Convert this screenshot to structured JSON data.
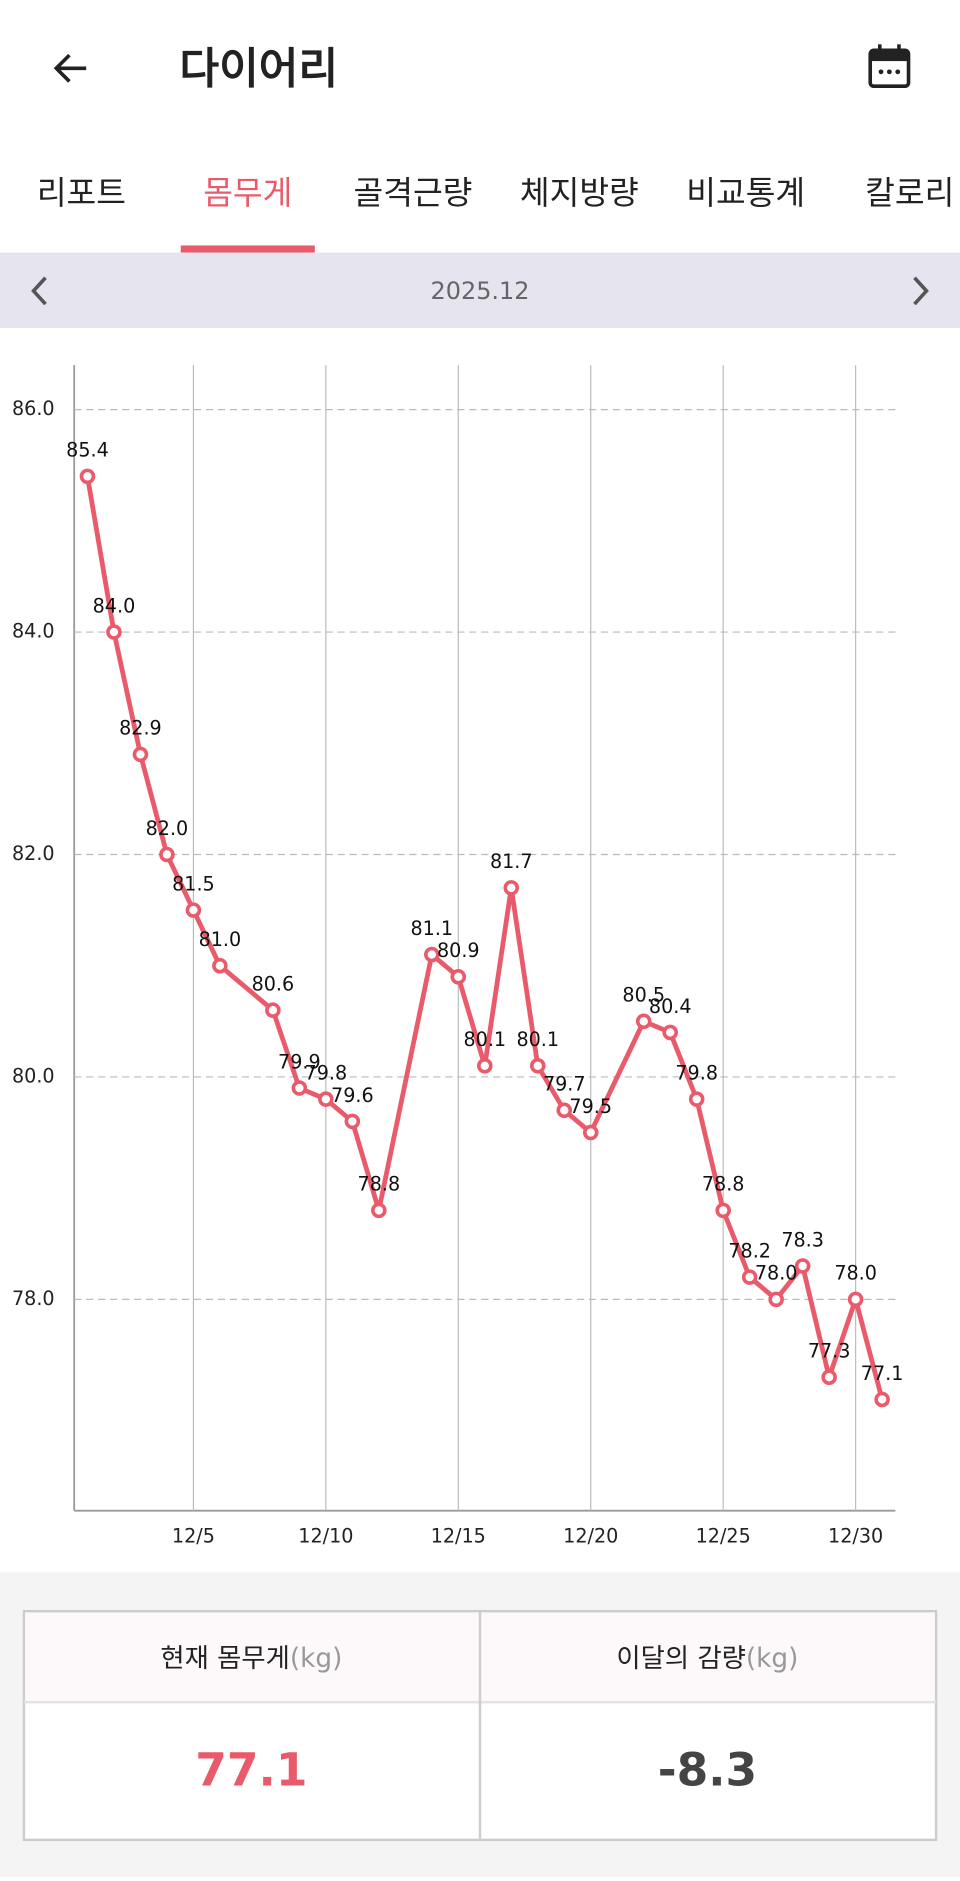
{
  "header": {
    "title": "다이어리"
  },
  "tabs": [
    "리포트",
    "몸무게",
    "골격근량",
    "체지방량",
    "비교통계",
    "칼로리"
  ],
  "month": "2025.12",
  "chart_data": {
    "type": "line",
    "x": [
      1,
      2,
      3,
      4,
      5,
      6,
      8,
      9,
      10,
      11,
      12,
      14,
      15,
      16,
      17,
      18,
      19,
      20,
      22,
      23,
      24,
      25,
      26,
      27,
      28,
      29,
      30,
      31
    ],
    "series": [
      {
        "name": "몸무게",
        "color": "#e95b6b",
        "values": [
          85.4,
          84.0,
          82.9,
          82.0,
          81.5,
          81.0,
          80.6,
          79.9,
          79.8,
          79.6,
          78.8,
          81.1,
          80.9,
          80.1,
          81.7,
          80.1,
          79.7,
          79.5,
          80.5,
          80.4,
          79.8,
          78.8,
          78.2,
          78.0,
          78.3,
          77.3,
          78.0,
          77.1
        ],
        "value_labels": [
          "85.4",
          "84.0",
          "82.9",
          "82.0",
          "81.5",
          "81.0",
          "80.6",
          "79.9",
          "79.8",
          "79.6",
          "78.8",
          "81.1",
          "80.9",
          "80.1",
          "81.7",
          "80.1",
          "79.7",
          "79.5",
          "80.5",
          "80.4",
          "79.8",
          "78.8",
          "78.2",
          "78.0",
          "78.3",
          "77.3",
          "78.0",
          "77.1"
        ]
      }
    ],
    "xlim": [
      0.5,
      31.5
    ],
    "xticks": [
      {
        "value": 5,
        "label": "12/5"
      },
      {
        "value": 10,
        "label": "12/10"
      },
      {
        "value": 15,
        "label": "12/15"
      },
      {
        "value": 20,
        "label": "12/20"
      },
      {
        "value": 25,
        "label": "12/25"
      },
      {
        "value": 30,
        "label": "12/30"
      }
    ],
    "ylim": [
      76.1,
      86.4
    ],
    "yticks": [
      {
        "value": 78,
        "label": "78.0"
      },
      {
        "value": 80,
        "label": "80.0"
      },
      {
        "value": 82,
        "label": "82.0"
      },
      {
        "value": 84,
        "label": "84.0"
      },
      {
        "value": 86,
        "label": "86.0"
      }
    ],
    "grid": true
  },
  "summary": {
    "headers": [
      {
        "text": "현재 몸무게",
        "unit": "(kg)"
      },
      {
        "text": "이달의 감량",
        "unit": "(kg)"
      }
    ],
    "values": [
      "77.1",
      "-8.3"
    ]
  }
}
